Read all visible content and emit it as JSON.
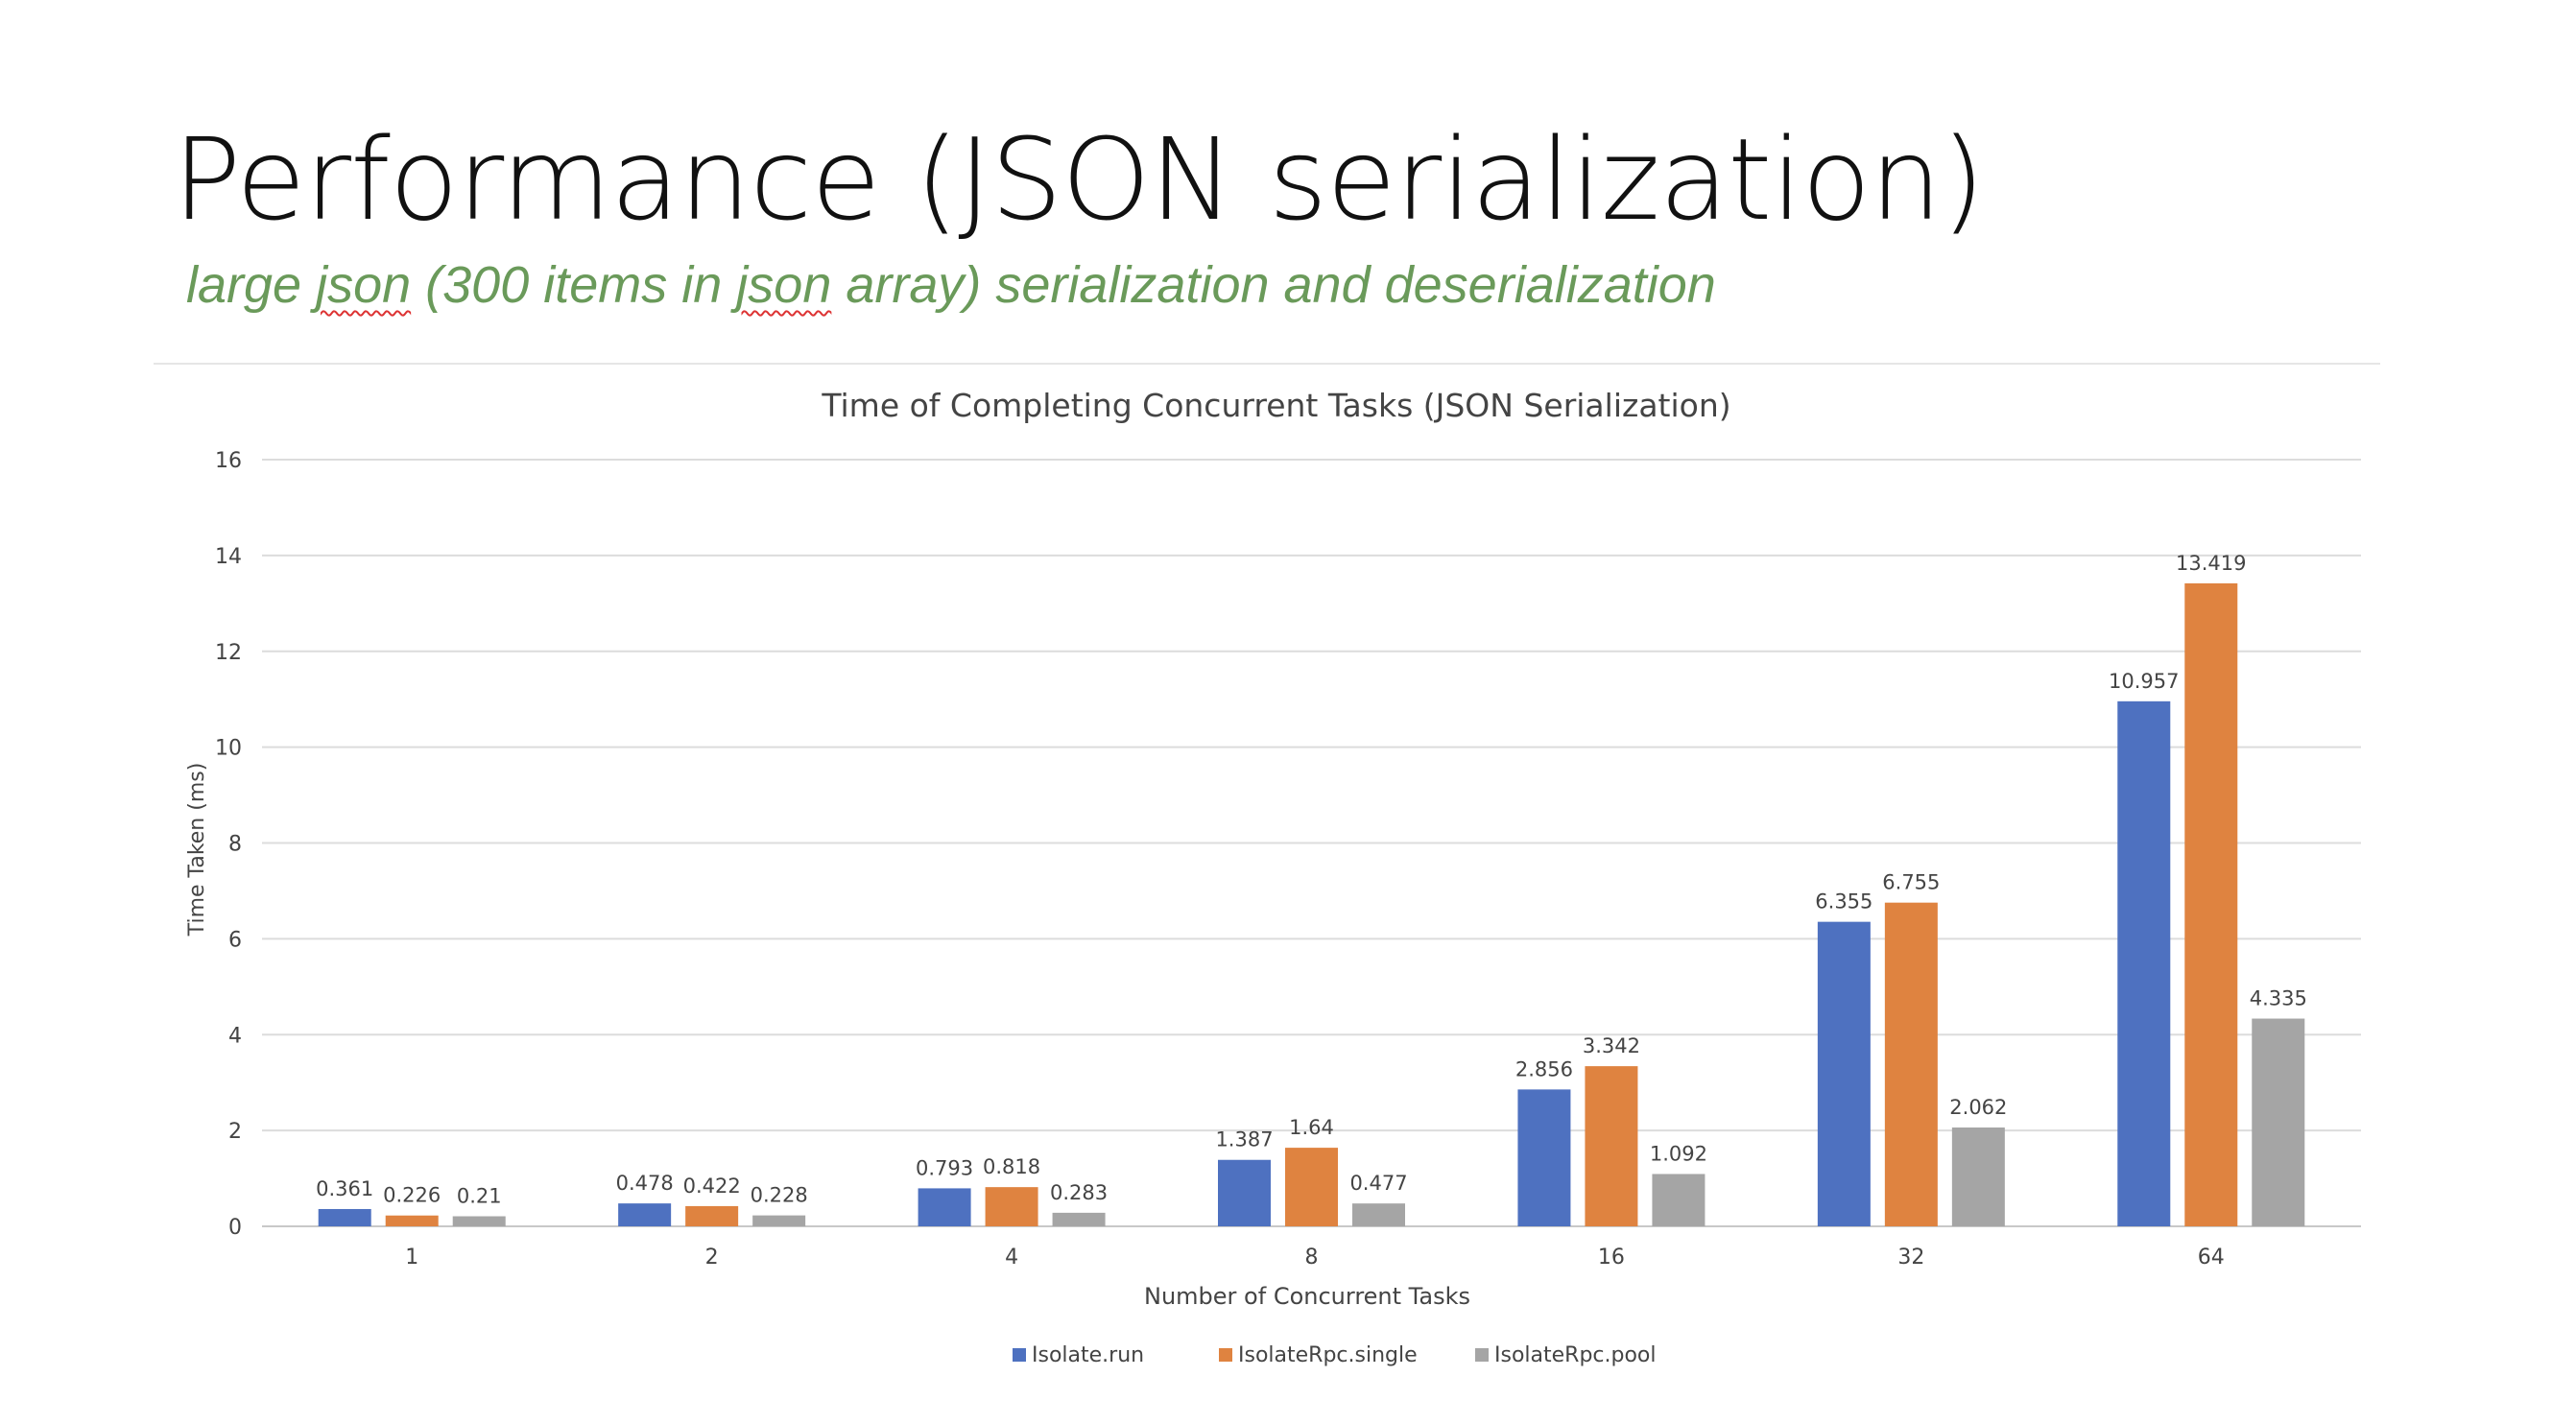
{
  "slide": {
    "title": "Performance (JSON serialization)",
    "subtitle_parts": [
      {
        "text": "large ",
        "squiggle": false
      },
      {
        "text": "json",
        "squiggle": true
      },
      {
        "text": " (300 items in ",
        "squiggle": false
      },
      {
        "text": "json",
        "squiggle": true
      },
      {
        "text": " array) serialization and deserialization",
        "squiggle": false
      }
    ]
  },
  "colors": {
    "accent_text": "#6a9a5a",
    "spellcheck": "#d33333"
  },
  "chart_data": {
    "type": "bar",
    "title": "Time of Completing Concurrent Tasks (JSON Serialization)",
    "xlabel": "Number of Concurrent Tasks",
    "ylabel": "Time Taken (ms)",
    "categories": [
      "1",
      "2",
      "4",
      "8",
      "16",
      "32",
      "64"
    ],
    "ylim": [
      0,
      16
    ],
    "yticks": [
      "0",
      "2",
      "4",
      "6",
      "8",
      "10",
      "12",
      "14",
      "16"
    ],
    "grid": true,
    "legend_position": "bottom",
    "data_labels": true,
    "series": [
      {
        "name": "Isolate.run",
        "color": "#4e71c0",
        "values": [
          0.361,
          0.478,
          0.793,
          1.387,
          2.856,
          6.355,
          10.957
        ],
        "labels": [
          "0.361",
          "0.478",
          "0.793",
          "1.387",
          "2.856",
          "6.355",
          "10.957"
        ]
      },
      {
        "name": "IsolateRpc.single",
        "color": "#df8340",
        "values": [
          0.226,
          0.422,
          0.818,
          1.64,
          3.342,
          6.755,
          13.419
        ],
        "labels": [
          "0.226",
          "0.422",
          "0.818",
          "1.64",
          "3.342",
          "6.755",
          "13.419"
        ]
      },
      {
        "name": "IsolateRpc.pool",
        "color": "#a5a5a5",
        "values": [
          0.21,
          0.228,
          0.283,
          0.477,
          1.092,
          2.062,
          4.335
        ],
        "labels": [
          "0.21",
          "0.228",
          "0.283",
          "0.477",
          "1.092",
          "2.062",
          "4.335"
        ]
      }
    ]
  }
}
